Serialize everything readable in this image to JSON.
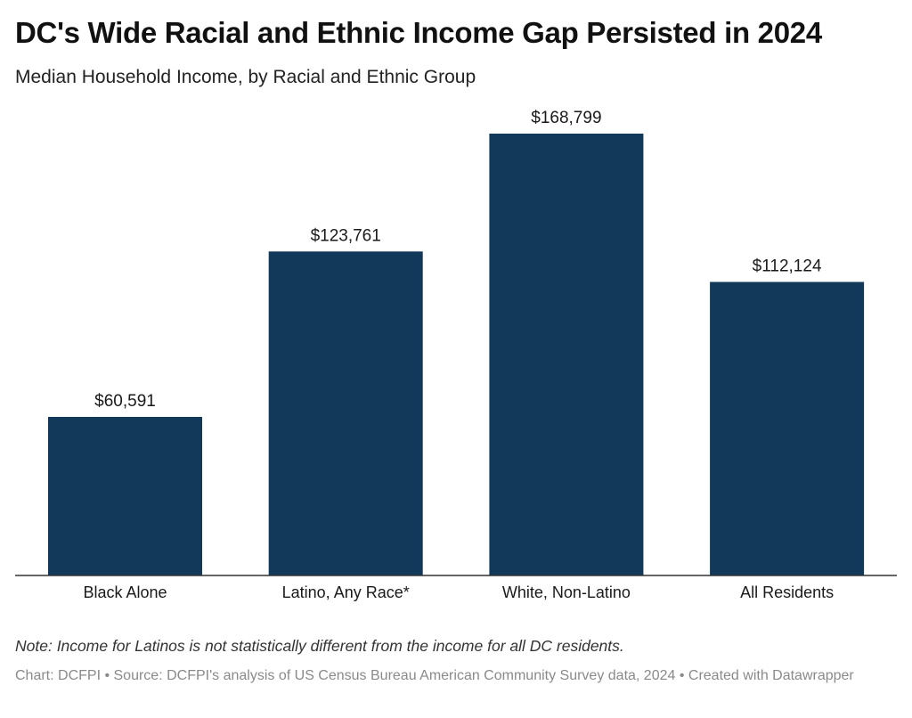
{
  "title": "DC's Wide Racial and Ethnic Income Gap Persisted in 2024",
  "subtitle": "Median Household Income, by Racial and Ethnic Group",
  "note": "Note: Income for Latinos is not statistically different from the income for all DC residents.",
  "source": "Chart: DCFPI • Source: DCFPI's analysis of US Census Bureau American Community Survey data, 2024 • Created with Datawrapper",
  "colors": {
    "bar": "#12385a",
    "axis": "#333333"
  },
  "chart_data": {
    "type": "bar",
    "categories": [
      "Black Alone",
      "Latino, Any Race*",
      "White, Non-Latino",
      "All Residents"
    ],
    "values": [
      60591,
      123761,
      168799,
      112124
    ],
    "value_labels": [
      "$60,591",
      "$123,761",
      "$168,799",
      "$112,124"
    ],
    "title": "DC's Wide Racial and Ethnic Income Gap Persisted in 2024",
    "subtitle": "Median Household Income, by Racial and Ethnic Group",
    "xlabel": "",
    "ylabel": "",
    "ylim": [
      0,
      168799
    ],
    "grid": false,
    "legend": "none"
  }
}
